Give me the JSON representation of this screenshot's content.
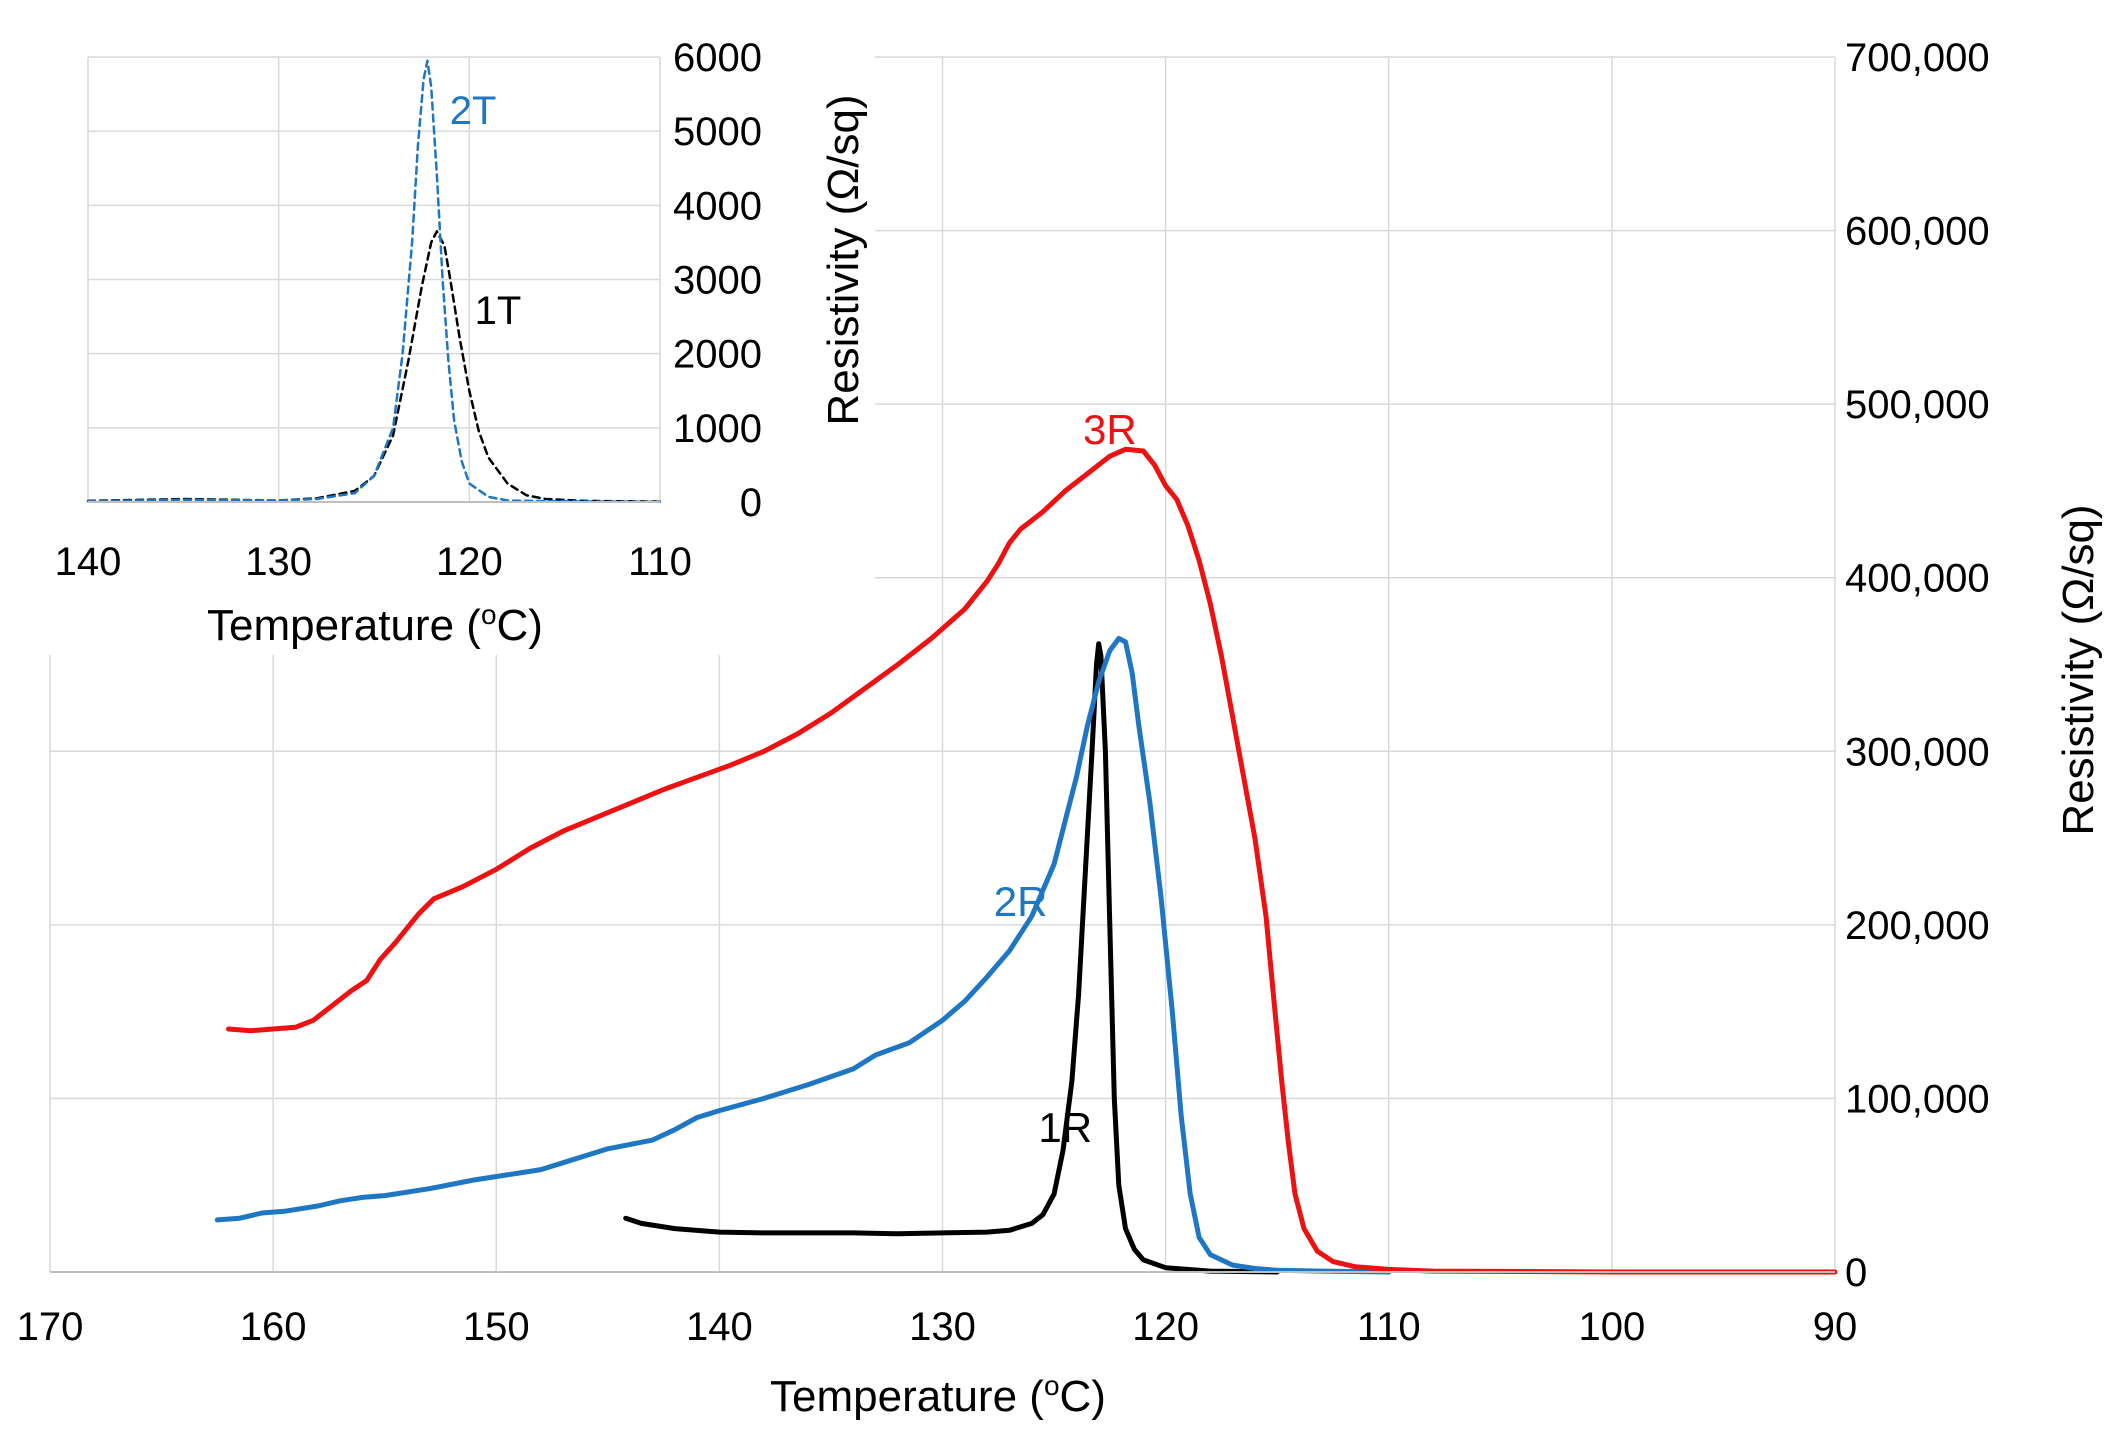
{
  "chart_data": [
    {
      "id": "main",
      "type": "line",
      "xlabel": "Temperature",
      "xunit_base": "o",
      "xunit_tail": "C)",
      "xunit_open": "(",
      "ylabel": "Resistivity (Ω/sq)",
      "xlim": [
        170,
        90
      ],
      "ylim": [
        0,
        700000
      ],
      "x_ticks": [
        170,
        160,
        150,
        140,
        130,
        120,
        110,
        100,
        90
      ],
      "y_ticks": [
        0,
        100000,
        200000,
        300000,
        400000,
        500000,
        600000,
        700000
      ],
      "y_tick_labels": [
        "0",
        "100,000",
        "200,000",
        "300,000",
        "400,000",
        "500,000",
        "600,000",
        "700,000"
      ],
      "grid": true,
      "series": [
        {
          "name": "1R",
          "color": "#000000",
          "label_at": [
            124.5,
            75000
          ],
          "points": [
            [
              144.2,
              31000
            ],
            [
              143.5,
              28000
            ],
            [
              142,
              25000
            ],
            [
              140,
              23000
            ],
            [
              138,
              22500
            ],
            [
              136,
              22500
            ],
            [
              134,
              22500
            ],
            [
              132,
              22000
            ],
            [
              130,
              22500
            ],
            [
              128,
              23000
            ],
            [
              127,
              24000
            ],
            [
              126,
              28000
            ],
            [
              125.5,
              33000
            ],
            [
              125,
              45000
            ],
            [
              124.6,
              70000
            ],
            [
              124.2,
              110000
            ],
            [
              123.9,
              160000
            ],
            [
              123.6,
              230000
            ],
            [
              123.3,
              300000
            ],
            [
              123.1,
              350000
            ],
            [
              123,
              362000
            ],
            [
              122.9,
              355000
            ],
            [
              122.7,
              300000
            ],
            [
              122.5,
              200000
            ],
            [
              122.3,
              100000
            ],
            [
              122.1,
              50000
            ],
            [
              121.8,
              25000
            ],
            [
              121.4,
              13000
            ],
            [
              121,
              7000
            ],
            [
              120,
              2500
            ],
            [
              118,
              500
            ],
            [
              115,
              0
            ]
          ]
        },
        {
          "name": "2R",
          "color": "#1f77c4",
          "label_at": [
            126.5,
            205000
          ],
          "points": [
            [
              162.5,
              30000
            ],
            [
              161.5,
              31000
            ],
            [
              160.5,
              34000
            ],
            [
              159.5,
              35000
            ],
            [
              158,
              38000
            ],
            [
              157,
              41000
            ],
            [
              156,
              43000
            ],
            [
              155,
              44000
            ],
            [
              153,
              48000
            ],
            [
              151,
              53000
            ],
            [
              149,
              57000
            ],
            [
              148,
              59000
            ],
            [
              147,
              63000
            ],
            [
              145,
              71000
            ],
            [
              143,
              76000
            ],
            [
              142,
              82000
            ],
            [
              141,
              89000
            ],
            [
              140,
              93000
            ],
            [
              138,
              100000
            ],
            [
              136,
              108000
            ],
            [
              134,
              117000
            ],
            [
              133,
              125000
            ],
            [
              131.5,
              132000
            ],
            [
              130,
              145000
            ],
            [
              129,
              156000
            ],
            [
              128,
              170000
            ],
            [
              127,
              185000
            ],
            [
              126,
              205000
            ],
            [
              125,
              235000
            ],
            [
              124.5,
              260000
            ],
            [
              124,
              285000
            ],
            [
              123.5,
              315000
            ],
            [
              123,
              340000
            ],
            [
              122.5,
              358000
            ],
            [
              122.1,
              365000
            ],
            [
              121.8,
              363000
            ],
            [
              121.5,
              345000
            ],
            [
              121.2,
              315000
            ],
            [
              120.7,
              270000
            ],
            [
              120.2,
              215000
            ],
            [
              119.7,
              150000
            ],
            [
              119.3,
              90000
            ],
            [
              118.9,
              45000
            ],
            [
              118.5,
              20000
            ],
            [
              118,
              10000
            ],
            [
              117,
              4000
            ],
            [
              116,
              2000
            ],
            [
              115,
              1000
            ],
            [
              113,
              500
            ],
            [
              110,
              0
            ]
          ]
        },
        {
          "name": "3R",
          "color": "#ee1111",
          "label_at": [
            122.5,
            477000
          ],
          "points": [
            [
              162,
              140000
            ],
            [
              161,
              139000
            ],
            [
              160,
              140000
            ],
            [
              159,
              141000
            ],
            [
              158.2,
              145000
            ],
            [
              157.5,
              152000
            ],
            [
              156.5,
              162000
            ],
            [
              155.8,
              168000
            ],
            [
              155.2,
              180000
            ],
            [
              154.5,
              190000
            ],
            [
              153.5,
              206000
            ],
            [
              152.8,
              215000
            ],
            [
              151.5,
              222000
            ],
            [
              150,
              232000
            ],
            [
              148.5,
              244000
            ],
            [
              147,
              254000
            ],
            [
              145.5,
              262000
            ],
            [
              144,
              270000
            ],
            [
              142.5,
              278000
            ],
            [
              141,
              285000
            ],
            [
              139.5,
              292000
            ],
            [
              138,
              300000
            ],
            [
              136.5,
              310000
            ],
            [
              135,
              322000
            ],
            [
              133.5,
              336000
            ],
            [
              132,
              350000
            ],
            [
              130.5,
              365000
            ],
            [
              129,
              382000
            ],
            [
              128,
              398000
            ],
            [
              127.5,
              408000
            ],
            [
              127,
              420000
            ],
            [
              126.5,
              428000
            ],
            [
              125.5,
              438000
            ],
            [
              124.5,
              450000
            ],
            [
              123.5,
              460000
            ],
            [
              122.5,
              470000
            ],
            [
              121.8,
              474000
            ],
            [
              121,
              473000
            ],
            [
              120.5,
              465000
            ],
            [
              120,
              453000
            ],
            [
              119.5,
              445000
            ],
            [
              119,
              430000
            ],
            [
              118.5,
              410000
            ],
            [
              118,
              385000
            ],
            [
              117.5,
              355000
            ],
            [
              117,
              320000
            ],
            [
              116.5,
              285000
            ],
            [
              116,
              250000
            ],
            [
              115.5,
              205000
            ],
            [
              115.1,
              150000
            ],
            [
              114.8,
              110000
            ],
            [
              114.5,
              75000
            ],
            [
              114.2,
              45000
            ],
            [
              113.8,
              25000
            ],
            [
              113.2,
              12000
            ],
            [
              112.5,
              6000
            ],
            [
              111.5,
              3000
            ],
            [
              110,
              1500
            ],
            [
              108,
              500
            ],
            [
              100,
              0
            ],
            [
              90,
              0
            ]
          ]
        }
      ]
    },
    {
      "id": "inset",
      "type": "line",
      "xlabel": "Temperature",
      "xunit_base": "o",
      "xunit_tail": "C)",
      "xunit_open": "(",
      "ylabel": "Resistivity (Ω/sq)",
      "xlim": [
        140,
        110
      ],
      "ylim": [
        0,
        6000
      ],
      "x_ticks": [
        140,
        130,
        120,
        110
      ],
      "y_ticks": [
        0,
        1000,
        2000,
        3000,
        4000,
        5000,
        6000
      ],
      "y_tick_labels": [
        "0",
        "1000",
        "2000",
        "3000",
        "4000",
        "5000",
        "6000"
      ],
      "grid": true,
      "series": [
        {
          "name": "1T",
          "color": "#000000",
          "dashed": true,
          "label_at": [
            118.5,
            2400
          ],
          "points": [
            [
              140,
              15
            ],
            [
              135,
              40
            ],
            [
              130,
              20
            ],
            [
              128,
              50
            ],
            [
              126,
              150
            ],
            [
              125,
              350
            ],
            [
              124,
              900
            ],
            [
              123.2,
              1900
            ],
            [
              122.5,
              2900
            ],
            [
              122,
              3500
            ],
            [
              121.7,
              3650
            ],
            [
              121.3,
              3450
            ],
            [
              121,
              3000
            ],
            [
              120.5,
              2200
            ],
            [
              120,
              1500
            ],
            [
              119.5,
              950
            ],
            [
              119,
              600
            ],
            [
              118,
              250
            ],
            [
              117,
              90
            ],
            [
              116,
              40
            ],
            [
              114,
              15
            ],
            [
              110,
              5
            ]
          ]
        },
        {
          "name": "2T",
          "color": "#1f77c4",
          "dashed": true,
          "label_at": [
            119.8,
            5100
          ],
          "points": [
            [
              140,
              10
            ],
            [
              135,
              30
            ],
            [
              130,
              20
            ],
            [
              128,
              40
            ],
            [
              126,
              120
            ],
            [
              125,
              350
            ],
            [
              124,
              1000
            ],
            [
              123.5,
              2000
            ],
            [
              123,
              3500
            ],
            [
              122.7,
              4800
            ],
            [
              122.4,
              5700
            ],
            [
              122.2,
              5950
            ],
            [
              122,
              5600
            ],
            [
              121.7,
              4400
            ],
            [
              121.4,
              3000
            ],
            [
              121.1,
              1900
            ],
            [
              120.8,
              1100
            ],
            [
              120.4,
              550
            ],
            [
              120,
              250
            ],
            [
              119,
              70
            ],
            [
              118,
              20
            ],
            [
              115,
              8
            ],
            [
              110,
              3
            ]
          ]
        }
      ]
    }
  ]
}
